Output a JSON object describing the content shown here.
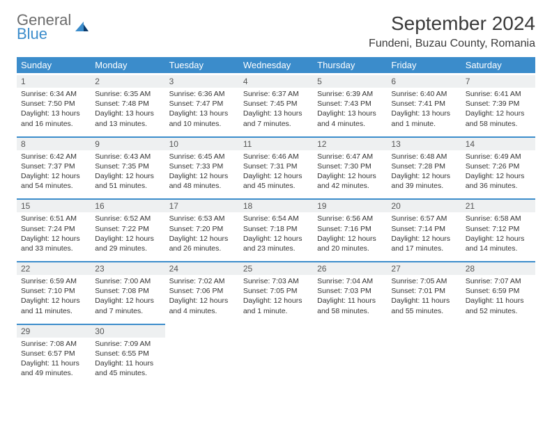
{
  "logo": {
    "line1": "General",
    "line2": "Blue"
  },
  "title": "September 2024",
  "location": "Fundeni, Buzau County, Romania",
  "colors": {
    "accent": "#3b8ccb",
    "header_bg": "#3b8ccb",
    "header_text": "#ffffff",
    "daynum_bg": "#eef0f1",
    "text": "#333333",
    "logo_gray": "#6b6b6b"
  },
  "dayHeaders": [
    "Sunday",
    "Monday",
    "Tuesday",
    "Wednesday",
    "Thursday",
    "Friday",
    "Saturday"
  ],
  "weeks": [
    [
      {
        "n": "1",
        "sunrise": "6:34 AM",
        "sunset": "7:50 PM",
        "dl": "13 hours and 16 minutes."
      },
      {
        "n": "2",
        "sunrise": "6:35 AM",
        "sunset": "7:48 PM",
        "dl": "13 hours and 13 minutes."
      },
      {
        "n": "3",
        "sunrise": "6:36 AM",
        "sunset": "7:47 PM",
        "dl": "13 hours and 10 minutes."
      },
      {
        "n": "4",
        "sunrise": "6:37 AM",
        "sunset": "7:45 PM",
        "dl": "13 hours and 7 minutes."
      },
      {
        "n": "5",
        "sunrise": "6:39 AM",
        "sunset": "7:43 PM",
        "dl": "13 hours and 4 minutes."
      },
      {
        "n": "6",
        "sunrise": "6:40 AM",
        "sunset": "7:41 PM",
        "dl": "13 hours and 1 minute."
      },
      {
        "n": "7",
        "sunrise": "6:41 AM",
        "sunset": "7:39 PM",
        "dl": "12 hours and 58 minutes."
      }
    ],
    [
      {
        "n": "8",
        "sunrise": "6:42 AM",
        "sunset": "7:37 PM",
        "dl": "12 hours and 54 minutes."
      },
      {
        "n": "9",
        "sunrise": "6:43 AM",
        "sunset": "7:35 PM",
        "dl": "12 hours and 51 minutes."
      },
      {
        "n": "10",
        "sunrise": "6:45 AM",
        "sunset": "7:33 PM",
        "dl": "12 hours and 48 minutes."
      },
      {
        "n": "11",
        "sunrise": "6:46 AM",
        "sunset": "7:31 PM",
        "dl": "12 hours and 45 minutes."
      },
      {
        "n": "12",
        "sunrise": "6:47 AM",
        "sunset": "7:30 PM",
        "dl": "12 hours and 42 minutes."
      },
      {
        "n": "13",
        "sunrise": "6:48 AM",
        "sunset": "7:28 PM",
        "dl": "12 hours and 39 minutes."
      },
      {
        "n": "14",
        "sunrise": "6:49 AM",
        "sunset": "7:26 PM",
        "dl": "12 hours and 36 minutes."
      }
    ],
    [
      {
        "n": "15",
        "sunrise": "6:51 AM",
        "sunset": "7:24 PM",
        "dl": "12 hours and 33 minutes."
      },
      {
        "n": "16",
        "sunrise": "6:52 AM",
        "sunset": "7:22 PM",
        "dl": "12 hours and 29 minutes."
      },
      {
        "n": "17",
        "sunrise": "6:53 AM",
        "sunset": "7:20 PM",
        "dl": "12 hours and 26 minutes."
      },
      {
        "n": "18",
        "sunrise": "6:54 AM",
        "sunset": "7:18 PM",
        "dl": "12 hours and 23 minutes."
      },
      {
        "n": "19",
        "sunrise": "6:56 AM",
        "sunset": "7:16 PM",
        "dl": "12 hours and 20 minutes."
      },
      {
        "n": "20",
        "sunrise": "6:57 AM",
        "sunset": "7:14 PM",
        "dl": "12 hours and 17 minutes."
      },
      {
        "n": "21",
        "sunrise": "6:58 AM",
        "sunset": "7:12 PM",
        "dl": "12 hours and 14 minutes."
      }
    ],
    [
      {
        "n": "22",
        "sunrise": "6:59 AM",
        "sunset": "7:10 PM",
        "dl": "12 hours and 11 minutes."
      },
      {
        "n": "23",
        "sunrise": "7:00 AM",
        "sunset": "7:08 PM",
        "dl": "12 hours and 7 minutes."
      },
      {
        "n": "24",
        "sunrise": "7:02 AM",
        "sunset": "7:06 PM",
        "dl": "12 hours and 4 minutes."
      },
      {
        "n": "25",
        "sunrise": "7:03 AM",
        "sunset": "7:05 PM",
        "dl": "12 hours and 1 minute."
      },
      {
        "n": "26",
        "sunrise": "7:04 AM",
        "sunset": "7:03 PM",
        "dl": "11 hours and 58 minutes."
      },
      {
        "n": "27",
        "sunrise": "7:05 AM",
        "sunset": "7:01 PM",
        "dl": "11 hours and 55 minutes."
      },
      {
        "n": "28",
        "sunrise": "7:07 AM",
        "sunset": "6:59 PM",
        "dl": "11 hours and 52 minutes."
      }
    ],
    [
      {
        "n": "29",
        "sunrise": "7:08 AM",
        "sunset": "6:57 PM",
        "dl": "11 hours and 49 minutes."
      },
      {
        "n": "30",
        "sunrise": "7:09 AM",
        "sunset": "6:55 PM",
        "dl": "11 hours and 45 minutes."
      },
      null,
      null,
      null,
      null,
      null
    ]
  ],
  "labels": {
    "sunrise": "Sunrise: ",
    "sunset": "Sunset: ",
    "daylight": "Daylight: "
  }
}
